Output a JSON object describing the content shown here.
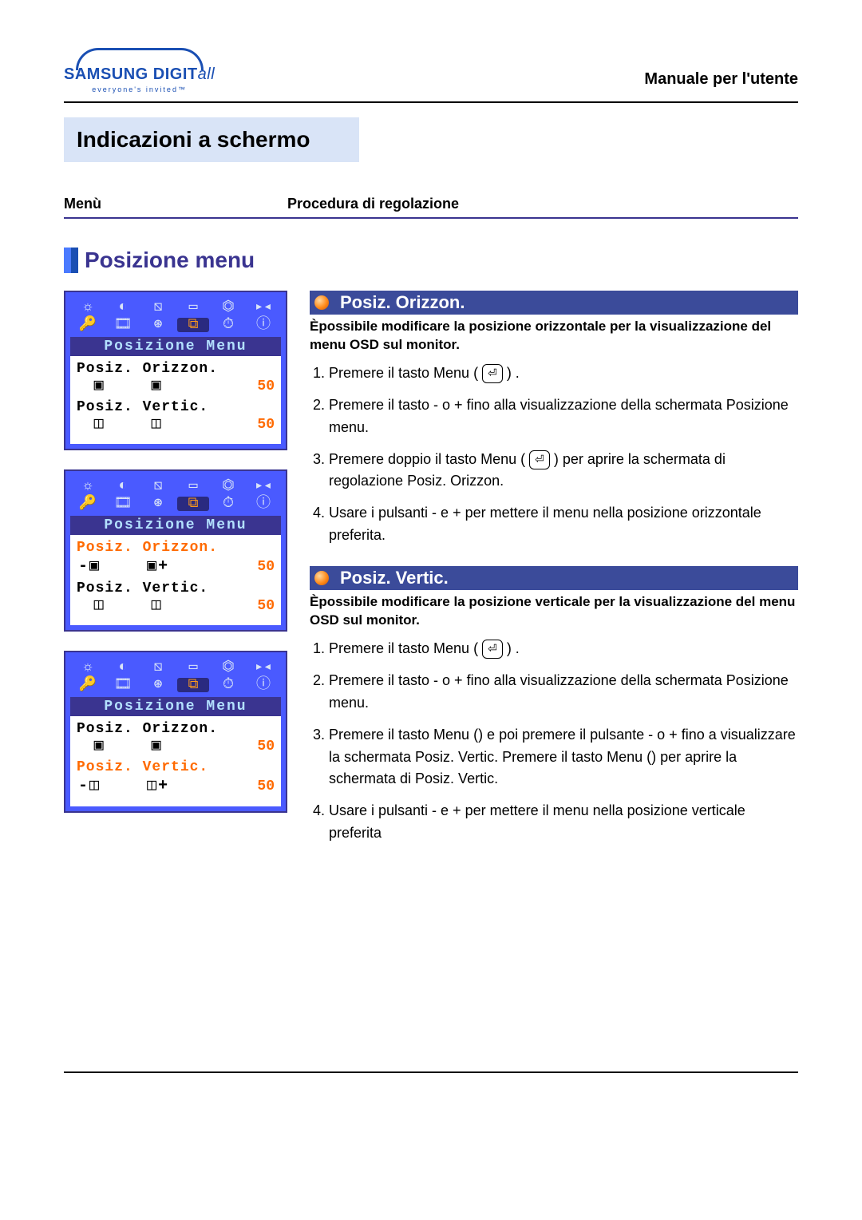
{
  "brand": {
    "name_a": "SAMSUNG",
    "name_b": "DIGIT",
    "name_c": "all",
    "tagline": "everyone's invited™"
  },
  "header": {
    "manual_label": "Manuale per l'utente",
    "page_title": "Indicazioni a schermo",
    "col_left": "Menù",
    "col_right": "Procedura di regolazione"
  },
  "section": {
    "title": "Posizione menu"
  },
  "osd": {
    "menu_label": "Posizione Menu",
    "horiz_label": "Posiz. Orizzon.",
    "vert_label": "Posiz. Vertic.",
    "horiz_value": "50",
    "vert_value": "50",
    "icons_row1": [
      "☼",
      "◐",
      "⧅",
      "▭",
      "⏣",
      "▸◂"
    ],
    "icons_row2": [
      "🔑",
      "🎞",
      "⊛",
      "⧉",
      "⏱",
      "ⓘ"
    ],
    "highlight_index": 9
  },
  "panels": [
    {
      "highlight": "none",
      "horiz_pm": false,
      "vert_pm": false
    },
    {
      "highlight": "horiz",
      "horiz_pm": true,
      "vert_pm": false
    },
    {
      "highlight": "vert",
      "horiz_pm": false,
      "vert_pm": true
    }
  ],
  "right": {
    "sec1": {
      "title": "Posiz. Orizzon.",
      "desc": "Èpossibile modificare la posizione orizzontale per la visualizzazione del menu OSD sul monitor.",
      "steps": [
        "Premere il tasto Menu (  ⏎  ) .",
        "Premere il tasto - o + fino alla visualizzazione della schermata Posizione menu.",
        "Premere doppio il tasto Menu (  ⏎  ) per aprire la schermata di regolazione Posiz. Orizzon.",
        "Usare i pulsanti - e + per mettere il menu nella posizione orizzontale preferita."
      ]
    },
    "sec2": {
      "title": "Posiz. Vertic.",
      "desc": "Èpossibile modificare la posizione verticale per la visualizzazione del menu OSD sul monitor.",
      "steps": [
        "Premere il tasto Menu (  ⏎  ) .",
        "Premere il tasto - o + fino alla visualizzazione della schermata Posizione menu.",
        "Premere il tasto Menu () e poi premere il pulsante - o + fino a visualizzare la schermata Posiz. Vertic. Premere il tasto Menu () per aprire la schermata di Posiz. Vertic.",
        "Usare i pulsanti - e + per mettere il menu nella posizione verticale preferita"
      ]
    }
  },
  "colors": {
    "brand_blue": "#1a4fb3",
    "header_blue": "#3b4b9a",
    "panel_blue": "#4a5aff",
    "dark_navy": "#3a3490",
    "cyan_text": "#b3e0ff",
    "orange": "#ff6a00",
    "orange_icon": "#ff9a1a",
    "light_blue_bg": "#d9e4f7"
  }
}
